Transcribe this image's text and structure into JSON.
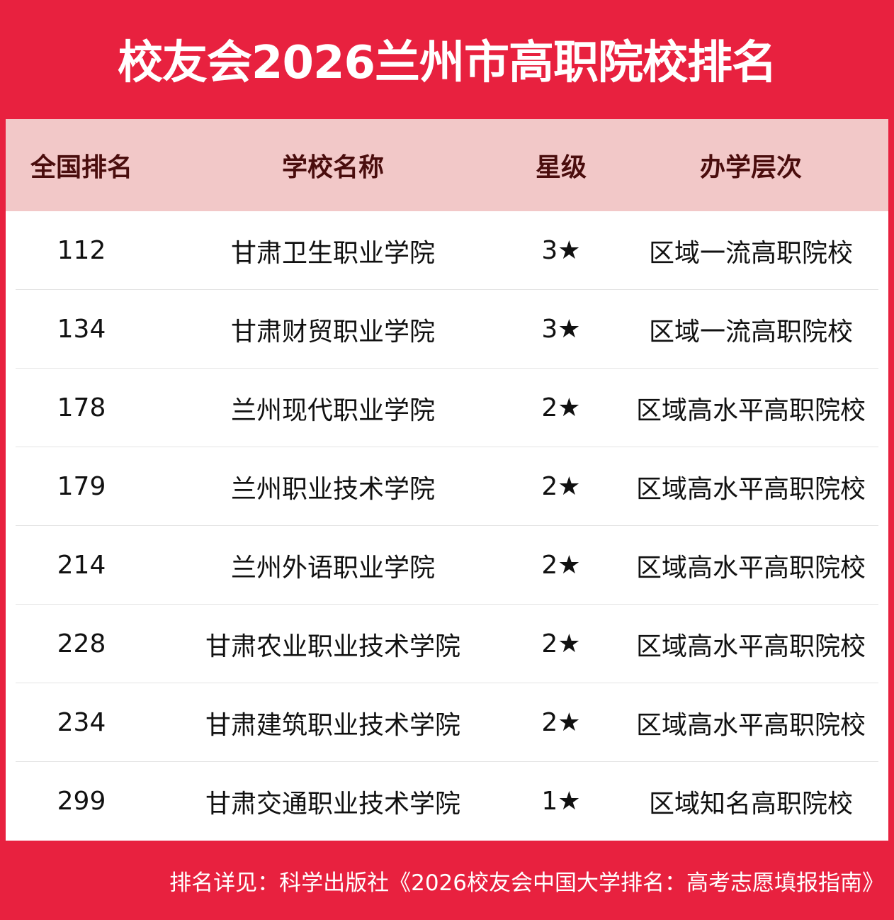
{
  "title": "校友会2026兰州市高职院校排名",
  "table": {
    "headers": [
      "全国排名",
      "学校名称",
      "星级",
      "办学层次"
    ],
    "rows": [
      {
        "rank": "112",
        "name": "甘肃卫生职业学院",
        "stars": "3★",
        "level": "区域一流高职院校"
      },
      {
        "rank": "134",
        "name": "甘肃财贸职业学院",
        "stars": "3★",
        "level": "区域一流高职院校"
      },
      {
        "rank": "178",
        "name": "兰州现代职业学院",
        "stars": "2★",
        "level": "区域高水平高职院校"
      },
      {
        "rank": "179",
        "name": "兰州职业技术学院",
        "stars": "2★",
        "level": "区域高水平高职院校"
      },
      {
        "rank": "214",
        "name": "兰州外语职业学院",
        "stars": "2★",
        "level": "区域高水平高职院校"
      },
      {
        "rank": "228",
        "name": "甘肃农业职业技术学院",
        "stars": "2★",
        "level": "区域高水平高职院校"
      },
      {
        "rank": "234",
        "name": "甘肃建筑职业技术学院",
        "stars": "2★",
        "level": "区域高水平高职院校"
      },
      {
        "rank": "299",
        "name": "甘肃交通职业技术学院",
        "stars": "1★",
        "level": "区域知名高职院校"
      }
    ]
  },
  "footer": "排名详见：科学出版社《2026校友会中国大学排名：高考志愿填报指南》",
  "colors": {
    "brand_red": "#e8213f",
    "header_bg": "#f2c8c8",
    "header_text": "#4a0d0d"
  }
}
